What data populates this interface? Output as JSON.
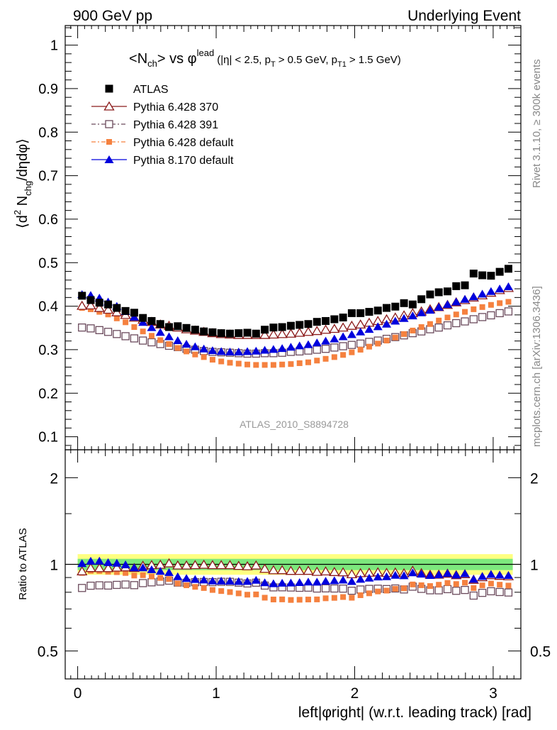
{
  "header": {
    "left": "900 GeV pp",
    "right": "Underlying Event"
  },
  "side_labels": {
    "rivet": "Rivet 3.1.10, ≥ 300k events",
    "mcplots": "mcplots.cern.ch [arXiv:1306.3436]"
  },
  "watermark": "ATLAS_2010_S8894728",
  "colors": {
    "atlas": "#000000",
    "p370": "#8b1a1a",
    "p391": "#6b4a5c",
    "p6def": "#f5813f",
    "p8": "#0000dd",
    "band_inner": "#7de87d",
    "band_outer": "#ffff80"
  },
  "chart_data": [
    {
      "type": "scatter",
      "panel": "main",
      "title": "<N_ch> vs φ^lead (|η| < 2.5, p_T > 0.5 GeV, p_T1 > 1.5 GeV)",
      "title_parts": {
        "n": "N",
        "ch": "ch",
        "vs": "vs φ",
        "lead": "lead",
        "cuts_a": "(|η| < 2.5, p",
        "t": "T",
        "cuts_b": "> 0.5 GeV, p",
        "t1": "T1",
        "cuts_c": "> 1.5 GeV)"
      },
      "ylabel": "⟨d² N_chg/dηdφ⟩",
      "ylabel_parts": {
        "a": "⟨d",
        "sup": "2",
        "b": " N",
        "sub": "chg",
        "c": "/dηdφ⟩"
      },
      "xlim": [
        -0.09,
        3.2
      ],
      "ylim": [
        0.07,
        1.045
      ],
      "yticks": [
        0.1,
        0.2,
        0.3,
        0.4,
        0.5,
        0.6,
        0.7,
        0.8,
        0.9,
        1
      ],
      "ytick_labels": [
        "0.1",
        "0.2",
        "0.3",
        "0.4",
        "0.5",
        "0.6",
        "0.7",
        "0.8",
        "0.9",
        "1"
      ],
      "legend_position": "top-left",
      "grid": false,
      "x": [
        0.0314,
        0.0942,
        0.157,
        0.2199,
        0.2827,
        0.3456,
        0.4084,
        0.4712,
        0.5341,
        0.5969,
        0.6597,
        0.7226,
        0.7854,
        0.8482,
        0.9111,
        0.9739,
        1.0367,
        1.0996,
        1.1624,
        1.2252,
        1.2881,
        1.3509,
        1.4137,
        1.4765,
        1.5394,
        1.6022,
        1.665,
        1.7279,
        1.7907,
        1.8535,
        1.9164,
        1.9792,
        2.042,
        2.1049,
        2.1677,
        2.2305,
        2.2934,
        2.3562,
        2.419,
        2.4819,
        2.5447,
        2.6075,
        2.6704,
        2.7332,
        2.796,
        2.8588,
        2.9217,
        2.9845,
        3.0473,
        3.1102
      ],
      "series": [
        {
          "name": "ATLAS",
          "key": "atlas",
          "marker": "square-filled",
          "values": [
            0.424,
            0.414,
            0.408,
            0.404,
            0.396,
            0.389,
            0.385,
            0.373,
            0.366,
            0.359,
            0.352,
            0.354,
            0.35,
            0.346,
            0.342,
            0.34,
            0.338,
            0.337,
            0.338,
            0.339,
            0.337,
            0.346,
            0.351,
            0.352,
            0.355,
            0.357,
            0.359,
            0.364,
            0.366,
            0.37,
            0.374,
            0.384,
            0.384,
            0.387,
            0.39,
            0.396,
            0.399,
            0.407,
            0.404,
            0.416,
            0.427,
            0.432,
            0.434,
            0.446,
            0.448,
            0.475,
            0.471,
            0.47,
            0.479,
            0.486
          ]
        },
        {
          "name": "Pythia 6.428 370",
          "key": "p370",
          "marker": "triangle-open",
          "values": [
            0.401,
            0.402,
            0.396,
            0.392,
            0.386,
            0.38,
            0.374,
            0.369,
            0.364,
            0.358,
            0.355,
            0.351,
            0.347,
            0.344,
            0.341,
            0.338,
            0.336,
            0.335,
            0.334,
            0.334,
            0.334,
            0.334,
            0.335,
            0.336,
            0.337,
            0.339,
            0.341,
            0.343,
            0.346,
            0.348,
            0.351,
            0.355,
            0.358,
            0.362,
            0.366,
            0.37,
            0.374,
            0.379,
            0.384,
            0.388,
            0.393,
            0.398,
            0.403,
            0.409,
            0.414,
            0.42,
            0.425,
            0.431,
            0.437,
            0.442
          ]
        },
        {
          "name": "Pythia 6.428 391",
          "key": "p391",
          "marker": "square-open",
          "values": [
            0.351,
            0.349,
            0.345,
            0.341,
            0.336,
            0.331,
            0.326,
            0.321,
            0.317,
            0.313,
            0.309,
            0.306,
            0.302,
            0.3,
            0.297,
            0.295,
            0.294,
            0.293,
            0.292,
            0.291,
            0.291,
            0.292,
            0.292,
            0.293,
            0.295,
            0.296,
            0.298,
            0.3,
            0.302,
            0.305,
            0.308,
            0.311,
            0.314,
            0.318,
            0.321,
            0.325,
            0.329,
            0.333,
            0.338,
            0.342,
            0.347,
            0.351,
            0.356,
            0.361,
            0.365,
            0.37,
            0.375,
            0.379,
            0.384,
            0.388
          ]
        },
        {
          "name": "Pythia 6.428 default",
          "key": "p6def",
          "marker": "square-small-filled",
          "values": [
            0.396,
            0.393,
            0.387,
            0.381,
            0.372,
            0.363,
            0.352,
            0.342,
            0.332,
            0.322,
            0.313,
            0.304,
            0.296,
            0.289,
            0.283,
            0.277,
            0.273,
            0.27,
            0.268,
            0.266,
            0.265,
            0.265,
            0.265,
            0.266,
            0.267,
            0.269,
            0.271,
            0.275,
            0.279,
            0.283,
            0.288,
            0.294,
            0.3,
            0.307,
            0.314,
            0.321,
            0.328,
            0.336,
            0.344,
            0.352,
            0.359,
            0.367,
            0.374,
            0.381,
            0.387,
            0.393,
            0.398,
            0.403,
            0.407,
            0.41
          ]
        },
        {
          "name": "Pythia 8.170 default",
          "key": "p8",
          "marker": "triangle-filled",
          "values": [
            0.427,
            0.425,
            0.419,
            0.41,
            0.4,
            0.388,
            0.375,
            0.363,
            0.351,
            0.34,
            0.33,
            0.321,
            0.313,
            0.307,
            0.302,
            0.298,
            0.296,
            0.295,
            0.295,
            0.296,
            0.297,
            0.299,
            0.301,
            0.303,
            0.306,
            0.309,
            0.312,
            0.316,
            0.32,
            0.325,
            0.33,
            0.335,
            0.341,
            0.347,
            0.353,
            0.359,
            0.366,
            0.372,
            0.378,
            0.385,
            0.391,
            0.398,
            0.404,
            0.41,
            0.416,
            0.422,
            0.428,
            0.434,
            0.44,
            0.445
          ]
        }
      ]
    },
    {
      "type": "scatter",
      "panel": "ratio",
      "ylabel": "Ratio to ATLAS",
      "xlabel": "left|φright| (w.r.t. leading track) [rad]",
      "yscale": "log",
      "ylim": [
        0.4,
        2.5
      ],
      "xlim": [
        -0.09,
        3.2
      ],
      "xticks": [
        0,
        1,
        2,
        3
      ],
      "xtick_labels": [
        "0",
        "1",
        "2",
        "3"
      ],
      "yticks": [
        0.5,
        1,
        2
      ],
      "ytick_labels": [
        "0.5",
        "1",
        "2"
      ],
      "reference_line": 1,
      "band_inner": [
        0.955,
        1.045
      ],
      "band_outer": [
        0.92,
        1.085
      ]
    }
  ]
}
